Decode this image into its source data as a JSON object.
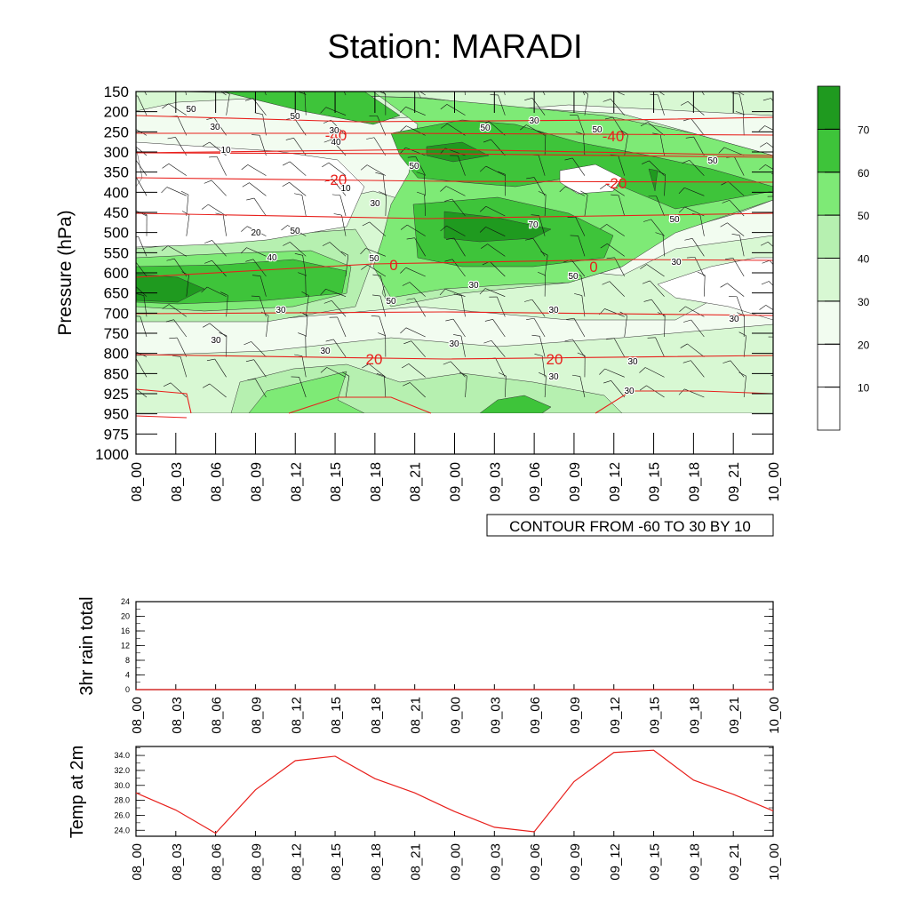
{
  "title": "Station: MARADI",
  "colors": {
    "temp_line": "#e8201c",
    "fill_levels": [
      "#ffffff",
      "#f2fcf0",
      "#d8f8d3",
      "#b6f0b0",
      "#7eea76",
      "#3ec43a",
      "#1f9a1f"
    ]
  },
  "chart_data": [
    {
      "type": "heatmap",
      "name": "pressure-time cross section",
      "ylabel": "Pressure (hPa)",
      "y_levels": [
        150,
        200,
        250,
        300,
        350,
        400,
        450,
        500,
        550,
        600,
        650,
        700,
        750,
        800,
        850,
        925,
        950,
        975,
        1000
      ],
      "x_labels": [
        "08_00",
        "08_03",
        "08_06",
        "08_09",
        "08_12",
        "08_15",
        "08_18",
        "08_21",
        "09_00",
        "09_03",
        "09_06",
        "09_09",
        "09_12",
        "09_15",
        "09_18",
        "09_21",
        "10_00"
      ],
      "colorbar": {
        "ticks": [
          10,
          20,
          30,
          40,
          50,
          60,
          70
        ],
        "levels": [
          0,
          10,
          20,
          30,
          40,
          50,
          60,
          70,
          80
        ]
      },
      "temperature_contours": [
        {
          "label": "-40",
          "pressure": 250
        },
        {
          "label": "-20",
          "pressure": 390
        },
        {
          "label": "0",
          "pressure": 590
        },
        {
          "label": "20",
          "pressure": 810
        }
      ],
      "contour_note": "CONTOUR FROM -60 TO 30 BY 10",
      "fill_contour_labels": [
        "50",
        "30",
        "10",
        "50",
        "40",
        "30",
        "50",
        "50",
        "30",
        "50",
        "10",
        "30",
        "50",
        "20",
        "40",
        "30",
        "30",
        "50",
        "70",
        "50",
        "50",
        "30",
        "50",
        "50",
        "30",
        "30",
        "30",
        "30",
        "30",
        "30",
        "30",
        "30"
      ]
    },
    {
      "type": "line",
      "name": "3hr rain total",
      "ylabel": "3hr rain total",
      "y_ticks": [
        0,
        4,
        8,
        12,
        16,
        20,
        24
      ],
      "ylim": [
        0,
        24
      ],
      "x_labels": [
        "08_00",
        "08_03",
        "08_06",
        "08_09",
        "08_12",
        "08_15",
        "08_18",
        "08_21",
        "09_00",
        "09_03",
        "09_06",
        "09_09",
        "09_12",
        "09_15",
        "09_18",
        "09_21",
        "10_00"
      ],
      "values": [
        0,
        0,
        0,
        0,
        0,
        0,
        0,
        0,
        0,
        0,
        0,
        0,
        0,
        0,
        0,
        0,
        0
      ]
    },
    {
      "type": "line",
      "name": "Temp at 2m",
      "ylabel": "Temp at 2m",
      "y_ticks": [
        "24.0",
        "26.0",
        "28.0",
        "30.0",
        "32.0",
        "34.0"
      ],
      "ylim": [
        23.2,
        35.2
      ],
      "x_labels": [
        "08_00",
        "08_03",
        "08_06",
        "08_09",
        "08_12",
        "08_15",
        "08_18",
        "08_21",
        "09_00",
        "09_03",
        "09_06",
        "09_09",
        "09_12",
        "09_15",
        "09_18",
        "09_21",
        "10_00"
      ],
      "values": [
        29.0,
        26.7,
        23.6,
        29.4,
        33.3,
        33.9,
        30.9,
        29.0,
        26.5,
        24.4,
        23.8,
        30.5,
        34.4,
        34.7,
        30.7,
        28.8,
        26.6
      ]
    }
  ]
}
